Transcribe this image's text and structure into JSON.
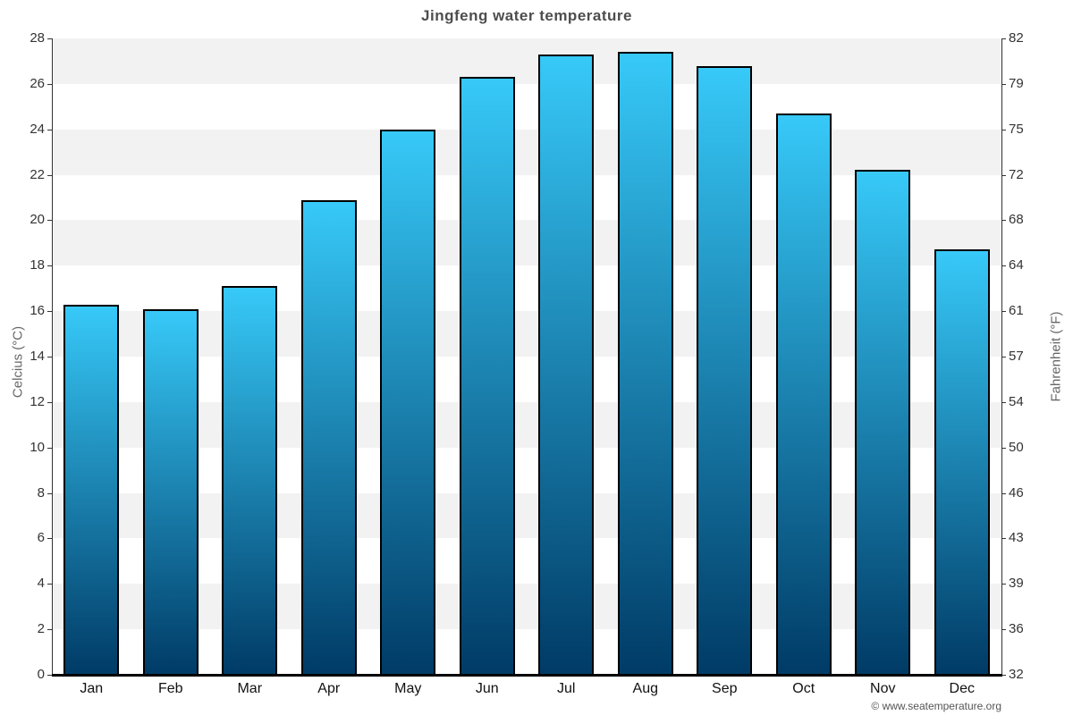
{
  "title": "Jingfeng water temperature",
  "footer": {
    "copyright": "© www.seatemperature.org"
  },
  "chart_data": {
    "type": "bar",
    "title": "Jingfeng water temperature",
    "categories": [
      "Jan",
      "Feb",
      "Mar",
      "Apr",
      "May",
      "Jun",
      "Jul",
      "Aug",
      "Sep",
      "Oct",
      "Nov",
      "Dec"
    ],
    "values": [
      16.3,
      16.1,
      17.1,
      20.9,
      24.0,
      26.3,
      27.3,
      27.4,
      26.8,
      24.7,
      22.2,
      18.7
    ],
    "unit": "°C",
    "ylabel_left": "Celcius (°C)",
    "ylabel_right": "Fahrenheit (°F)",
    "ylim": [
      0,
      28
    ],
    "ytick_step": 2,
    "yticks_celsius": [
      0,
      2,
      4,
      6,
      8,
      10,
      12,
      14,
      16,
      18,
      20,
      22,
      24,
      26,
      28
    ],
    "yticks_fahrenheit_labels": [
      "32",
      "36",
      "39",
      "43",
      "46",
      "50",
      "54",
      "57",
      "61",
      "64",
      "68",
      "72",
      "75",
      "79",
      "82"
    ],
    "grid": "alternating-horizontal-bands-2C",
    "legend": "none",
    "colors": {
      "bar_gradient_top": "#37c9f8",
      "bar_gradient_bottom": "#003b66",
      "bar_border": "#000000",
      "band_gray": "#f2f2f2",
      "band_white": "#ffffff",
      "axis_line": "#333333",
      "bottom_axis_line": "#000000",
      "tick_label": "#333333",
      "title_color": "#4d4d4d",
      "axis_title_color": "#666666",
      "copyright_color": "#555555"
    }
  }
}
